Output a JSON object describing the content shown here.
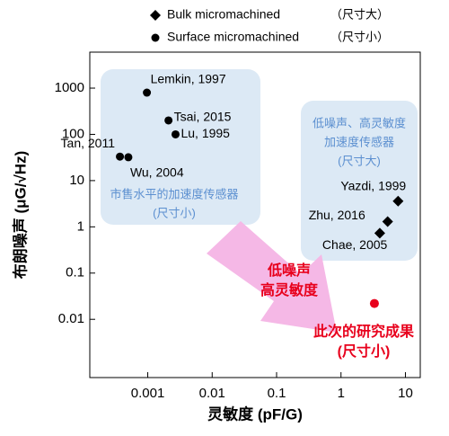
{
  "chart_data": {
    "type": "scatter",
    "xlabel": "灵敏度 (pF/G)",
    "ylabel": "布朗噪声 (μG/√Hz)",
    "xlog": true,
    "ylog": true,
    "xlim": [
      0.000126,
      17
    ],
    "ylim": [
      0.00055,
      6000
    ],
    "xticks": [
      0.001,
      0.01,
      0.1,
      1,
      10
    ],
    "yticks": [
      1000,
      100,
      10,
      1,
      0.1,
      0.01
    ],
    "series": [
      {
        "name": "Bulk micromachined",
        "size_note": "（尺寸大）",
        "marker": "diamond",
        "color": "#000000",
        "x": [
          7.7,
          5.3,
          4.0
        ],
        "values": [
          3.6,
          1.3,
          0.73
        ],
        "labels": [
          "Yazdi, 1999",
          "Zhu, 2016",
          "Chae, 2005"
        ]
      },
      {
        "name": "Surface micromachined",
        "size_note": "（尺寸小）",
        "marker": "circle",
        "color": "#000000",
        "x": [
          0.00097,
          0.0021,
          0.0027,
          0.00037,
          0.0005
        ],
        "values": [
          800,
          200,
          100,
          33,
          32
        ],
        "labels": [
          "Lemkin, 1997",
          "Tsai, 2015",
          "Lu, 1995",
          "Tan, 2011",
          "Wu, 2004"
        ]
      }
    ],
    "highlight": {
      "x": 3.3,
      "y": 0.022,
      "color": "#e8001c",
      "label": [
        "此次的研究成果",
        "(尺寸小)"
      ]
    },
    "annotations": {
      "commercial": [
        "市售水平的加速度传感器",
        "(尺寸小)"
      ],
      "research": [
        "低噪声、高灵敏度",
        "加速度传感器",
        "(尺寸大)"
      ],
      "arrow": [
        "低噪声",
        "高灵敏度"
      ]
    }
  }
}
